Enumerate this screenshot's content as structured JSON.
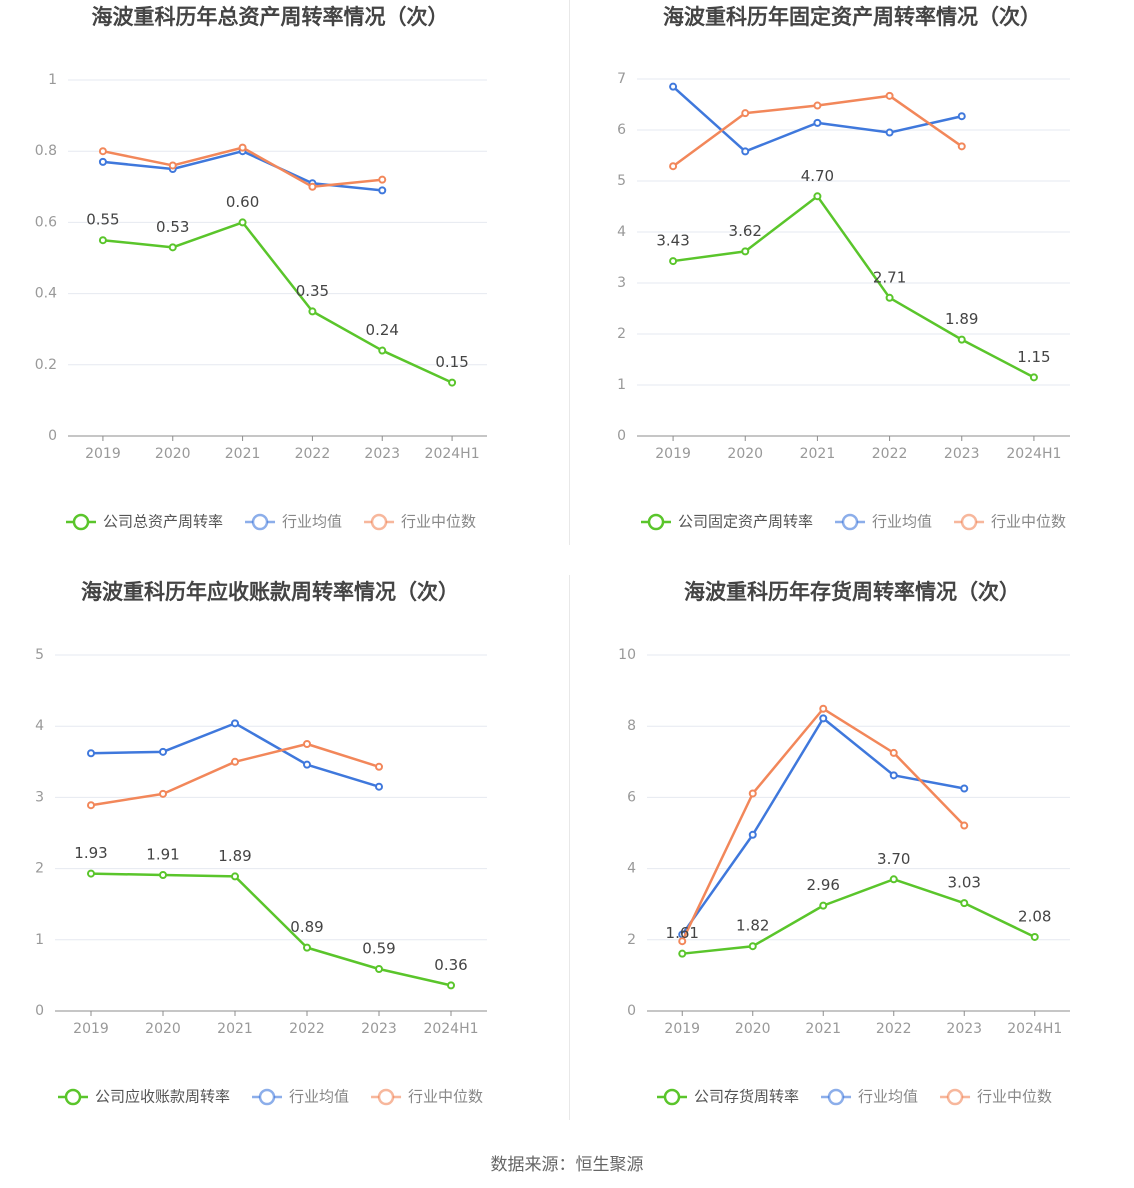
{
  "footer": {
    "source": "数据来源：恒生聚源"
  },
  "legend_labels": {
    "industry_avg": "行业均值",
    "industry_median": "行业中位数"
  },
  "colors": {
    "company": "#5ac52b",
    "industry_avg": "#3f78dc",
    "industry_median": "#f2875a",
    "grid": "#e6e9f0",
    "axis": "#8c8c8c",
    "label": "#999999",
    "title": "#444444"
  },
  "chart_data": [
    {
      "type": "line",
      "title": "海波重科历年总资产周转率情况（次）",
      "categories": [
        "2019",
        "2020",
        "2021",
        "2022",
        "2023",
        "2024H1"
      ],
      "ylim": [
        0,
        1
      ],
      "yticks": [
        "0",
        "0.2",
        "0.4",
        "0.6",
        "0.8",
        "1"
      ],
      "grid": true,
      "legend": "bottom",
      "series": [
        {
          "name": "公司总资产周转率",
          "role": "company",
          "values": [
            0.55,
            0.53,
            0.6,
            0.35,
            0.24,
            0.15
          ],
          "labels": [
            "0.55",
            "0.53",
            "0.60",
            "0.35",
            "0.24",
            "0.15"
          ]
        },
        {
          "name": "行业均值",
          "role": "industry_avg",
          "values": [
            0.77,
            0.75,
            0.8,
            0.71,
            0.69,
            null
          ]
        },
        {
          "name": "行业中位数",
          "role": "industry_median",
          "values": [
            0.8,
            0.76,
            0.81,
            0.7,
            0.72,
            null
          ]
        }
      ]
    },
    {
      "type": "line",
      "title": "海波重科历年固定资产周转率情况（次）",
      "categories": [
        "2019",
        "2020",
        "2021",
        "2022",
        "2023",
        "2024H1"
      ],
      "ylim": [
        0,
        7
      ],
      "yticks": [
        "0",
        "1",
        "2",
        "3",
        "4",
        "5",
        "6",
        "7"
      ],
      "grid": true,
      "legend": "bottom",
      "series": [
        {
          "name": "公司固定资产周转率",
          "role": "company",
          "values": [
            3.43,
            3.62,
            4.7,
            2.71,
            1.89,
            1.15
          ],
          "labels": [
            "3.43",
            "3.62",
            "4.70",
            "2.71",
            "1.89",
            "1.15"
          ]
        },
        {
          "name": "行业均值",
          "role": "industry_avg",
          "values": [
            6.85,
            5.58,
            6.14,
            5.95,
            6.27,
            null
          ]
        },
        {
          "name": "行业中位数",
          "role": "industry_median",
          "values": [
            5.29,
            6.33,
            6.48,
            6.67,
            5.68,
            null
          ]
        }
      ]
    },
    {
      "type": "line",
      "title": "海波重科历年应收账款周转率情况（次）",
      "categories": [
        "2019",
        "2020",
        "2021",
        "2022",
        "2023",
        "2024H1"
      ],
      "ylim": [
        0,
        5
      ],
      "yticks": [
        "0",
        "1",
        "2",
        "3",
        "4",
        "5"
      ],
      "grid": true,
      "legend": "bottom",
      "series": [
        {
          "name": "公司应收账款周转率",
          "role": "company",
          "values": [
            1.93,
            1.91,
            1.89,
            0.89,
            0.59,
            0.36
          ],
          "labels": [
            "1.93",
            "1.91",
            "1.89",
            "0.89",
            "0.59",
            "0.36"
          ]
        },
        {
          "name": "行业均值",
          "role": "industry_avg",
          "values": [
            3.62,
            3.64,
            4.04,
            3.46,
            3.15,
            null
          ]
        },
        {
          "name": "行业中位数",
          "role": "industry_median",
          "values": [
            2.89,
            3.05,
            3.5,
            3.75,
            3.43,
            null
          ]
        }
      ]
    },
    {
      "type": "line",
      "title": "海波重科历年存货周转率情况（次）",
      "categories": [
        "2019",
        "2020",
        "2021",
        "2022",
        "2023",
        "2024H1"
      ],
      "ylim": [
        0,
        10
      ],
      "yticks": [
        "0",
        "2",
        "4",
        "6",
        "8",
        "10"
      ],
      "grid": true,
      "legend": "bottom",
      "series": [
        {
          "name": "公司存货周转率",
          "role": "company",
          "values": [
            1.61,
            1.82,
            2.96,
            3.7,
            3.03,
            2.08
          ],
          "labels": [
            "1.61",
            "1.82",
            "2.96",
            "3.70",
            "3.03",
            "2.08"
          ]
        },
        {
          "name": "行业均值",
          "role": "industry_avg",
          "values": [
            2.15,
            4.95,
            8.22,
            6.62,
            6.25,
            null
          ]
        },
        {
          "name": "行业中位数",
          "role": "industry_median",
          "values": [
            1.96,
            6.11,
            8.49,
            7.25,
            5.21,
            null
          ]
        }
      ]
    }
  ]
}
